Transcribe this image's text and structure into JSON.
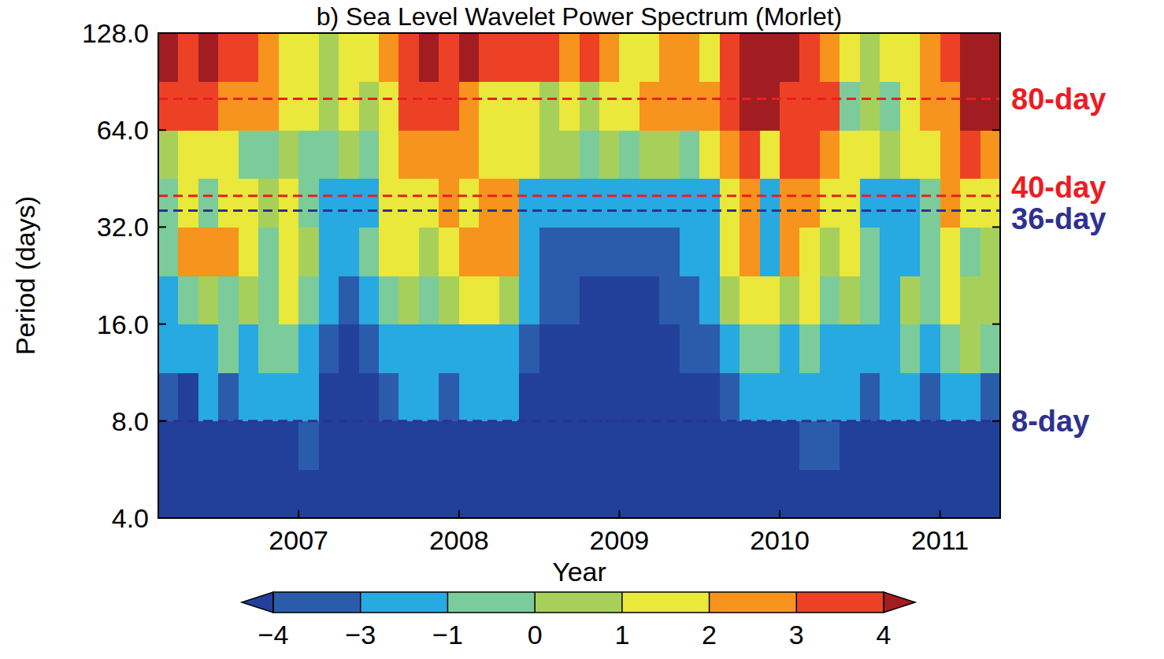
{
  "chart_data": {
    "type": "heatmap",
    "title": "b) Sea Level Wavelet Power Spectrum (Morlet)",
    "x_label": "Year",
    "y_label": "Period (days)",
    "log": "y",
    "xlim": [
      2006.125,
      2011.375
    ],
    "xticks": [
      2007,
      2008,
      2009,
      2010,
      2011
    ],
    "ylim": [
      4,
      128
    ],
    "yticks": [
      {
        "value": 4,
        "label": "4.0"
      },
      {
        "value": 8,
        "label": "8.0"
      },
      {
        "value": 16,
        "label": "16.0"
      },
      {
        "value": 32,
        "label": "32.0"
      },
      {
        "value": 64,
        "label": "64.0"
      },
      {
        "value": 128,
        "label": "128.0"
      }
    ],
    "x_edges": [
      2006.125,
      2006.25,
      2006.375,
      2006.5,
      2006.625,
      2006.75,
      2006.875,
      2007,
      2007.125,
      2007.25,
      2007.375,
      2007.5,
      2007.625,
      2007.75,
      2007.875,
      2008,
      2008.125,
      2008.25,
      2008.375,
      2008.5,
      2008.625,
      2008.75,
      2008.875,
      2009,
      2009.125,
      2009.25,
      2009.375,
      2009.5,
      2009.625,
      2009.75,
      2009.875,
      2010,
      2010.125,
      2010.25,
      2010.375,
      2010.5,
      2010.625,
      2010.75,
      2010.875,
      2011,
      2011.125,
      2011.25,
      2011.375
    ],
    "y_edges": [
      4,
      5.66,
      8,
      11.31,
      16,
      22.63,
      32,
      45.25,
      64,
      90.51,
      128
    ],
    "cells": [
      [
        -5,
        -5,
        -5,
        -5,
        -5,
        -5,
        -5,
        -5,
        -5,
        -5,
        -5,
        -5,
        -5,
        -5,
        -5,
        -5,
        -5,
        -5,
        -5,
        -5,
        -5,
        -5,
        -5,
        -5,
        -5,
        -5,
        -5,
        -5,
        -5,
        -5,
        -5,
        -5,
        -5,
        -5,
        -5,
        -5,
        -5,
        -5,
        -5,
        -5,
        -5,
        -5
      ],
      [
        -5,
        -5,
        -5,
        -5,
        -5,
        -5,
        -4.5,
        -3.5,
        -5,
        -5,
        -5,
        -5,
        -5,
        -5,
        -4.5,
        -4.5,
        -5,
        -4.5,
        -5,
        -5,
        -5,
        -5,
        -5,
        -5,
        -5,
        -5,
        -5,
        -5,
        -5,
        -5,
        -4.5,
        -5,
        -3.5,
        -3.5,
        -4.5,
        -4.5,
        -5,
        -5,
        -4.5,
        -5,
        -5,
        -5
      ],
      [
        -3.5,
        -4.5,
        -2,
        -3.5,
        -2.5,
        -2,
        -2,
        -2.5,
        -4.5,
        -4.5,
        -4.5,
        -3.5,
        -2.5,
        -2,
        -3.5,
        -2.5,
        -2,
        -2.5,
        -4.5,
        -4.5,
        -4.5,
        -5,
        -5,
        -5,
        -5,
        -5,
        -5,
        -4.5,
        -3.5,
        -2,
        -2,
        -2.5,
        -2,
        -2,
        -2.5,
        -3.5,
        -2.5,
        -2,
        -3.5,
        -2.5,
        -2,
        -3.5
      ],
      [
        -2,
        -2.5,
        -1.5,
        -0.5,
        -2,
        -0.5,
        -0.5,
        -2,
        -3.5,
        -4.5,
        -3.5,
        -2,
        -2,
        -1.5,
        -2,
        -2,
        -1.5,
        -2,
        -3.5,
        -4.5,
        -4.5,
        -4.5,
        -4.5,
        -4.5,
        -4.5,
        -4.5,
        -3.5,
        -3.5,
        -2,
        -0.5,
        -0.5,
        -2,
        -0.5,
        -2,
        -2,
        -2,
        -2,
        -0.5,
        -2,
        -0.5,
        0.5,
        -0.5
      ],
      [
        -2,
        -0.5,
        0.5,
        -0.5,
        0.5,
        -0.5,
        1.5,
        -0.5,
        -2,
        -3.5,
        -2,
        -0.5,
        0.5,
        -0.5,
        0.5,
        1.5,
        1.5,
        0.5,
        -2,
        -3.5,
        -3.5,
        -4.5,
        -4.5,
        -4.5,
        -4.5,
        -3.5,
        -3.5,
        -2,
        0.5,
        1.5,
        1.5,
        0.5,
        1.5,
        -0.5,
        0.5,
        -0.5,
        -2,
        0.5,
        -0.5,
        1.5,
        0.5,
        0.5
      ],
      [
        -0.5,
        2.5,
        2.5,
        2.5,
        1.5,
        -0.5,
        1.5,
        0.5,
        -2,
        -2,
        -0.5,
        1.5,
        1.5,
        0.5,
        1.5,
        2.5,
        2.5,
        2.5,
        -2,
        -3.5,
        -3.5,
        -3.5,
        -3.5,
        -3.5,
        -3.5,
        -3.5,
        -2,
        -2,
        1.5,
        2.5,
        -2,
        2.5,
        1.5,
        0.5,
        1.5,
        -0.5,
        -2,
        -2,
        -0.5,
        1.5,
        -0.5,
        0.5
      ],
      [
        -0.5,
        1.5,
        -0.5,
        1.5,
        1.5,
        0.5,
        1.5,
        -0.5,
        -2,
        -2,
        -2,
        1.5,
        1.5,
        1.5,
        2.5,
        1.5,
        2.5,
        2.5,
        -2,
        -2,
        -2,
        -2,
        -2,
        -2,
        -2,
        -2,
        -2,
        -2,
        1.5,
        2.5,
        -2,
        2.5,
        2.5,
        1.5,
        1.5,
        -2,
        -2,
        -2,
        -0.5,
        2.5,
        1.5,
        1.5
      ],
      [
        0.5,
        1.5,
        1.5,
        1.5,
        -0.5,
        -0.5,
        0.5,
        -0.5,
        -0.5,
        0.5,
        -0.5,
        1.5,
        2.5,
        2.5,
        2.5,
        2.5,
        1.5,
        1.5,
        1.5,
        0.5,
        0.5,
        -0.5,
        0.5,
        -0.5,
        0.5,
        0.5,
        -0.5,
        1.5,
        2.5,
        3.5,
        1.5,
        3.5,
        3.5,
        2.5,
        1.5,
        1.5,
        0.5,
        1.5,
        1.5,
        2.5,
        3.5,
        2.5
      ],
      [
        3.5,
        3.5,
        3.5,
        2.5,
        2.5,
        2.5,
        1.5,
        1.5,
        0.5,
        1.5,
        0.5,
        1.5,
        3.5,
        3.5,
        3.5,
        2.5,
        1.5,
        1.5,
        1.5,
        0.5,
        1.5,
        0.5,
        1.5,
        1.5,
        2.5,
        2.5,
        2.5,
        2.5,
        3.5,
        4.5,
        4.5,
        3.5,
        3.5,
        3.5,
        -0.5,
        0.5,
        -0.5,
        1.5,
        2.5,
        2.5,
        4.5,
        4.5
      ],
      [
        4.5,
        3.5,
        4.5,
        3.5,
        3.5,
        2.5,
        1.5,
        1.5,
        0.5,
        1.5,
        1.5,
        2.5,
        3.5,
        4.5,
        3.5,
        4.5,
        3.5,
        3.5,
        3.5,
        3.5,
        2.5,
        3.5,
        2.5,
        1.5,
        1.5,
        2.5,
        2.5,
        1.5,
        3.5,
        4.5,
        4.5,
        4.5,
        3.5,
        2.5,
        1.5,
        0.5,
        1.5,
        1.5,
        2.5,
        3.5,
        4.5,
        4.5
      ]
    ],
    "colorbar": {
      "ticks": [
        {
          "value": -4,
          "label": "−4"
        },
        {
          "value": -3,
          "label": "−3"
        },
        {
          "value": -1,
          "label": "−1"
        },
        0,
        1,
        2,
        3,
        4
      ],
      "colors": [
        "#22409a",
        "#2b5cab",
        "#27a9e1",
        "#7ccb9b",
        "#a7d05a",
        "#eae83a",
        "#f7941d",
        "#ed4126",
        "#a21d21"
      ]
    },
    "reference_lines": [
      {
        "value": 80,
        "label": "80-day",
        "color": "#ed1c24"
      },
      {
        "value": 40,
        "label": "40-day",
        "color": "#ed1c24"
      },
      {
        "value": 36,
        "label": "36-day",
        "color": "#2e3192"
      },
      {
        "value": 8,
        "label": "8-day",
        "color": "#2e3192"
      }
    ]
  }
}
